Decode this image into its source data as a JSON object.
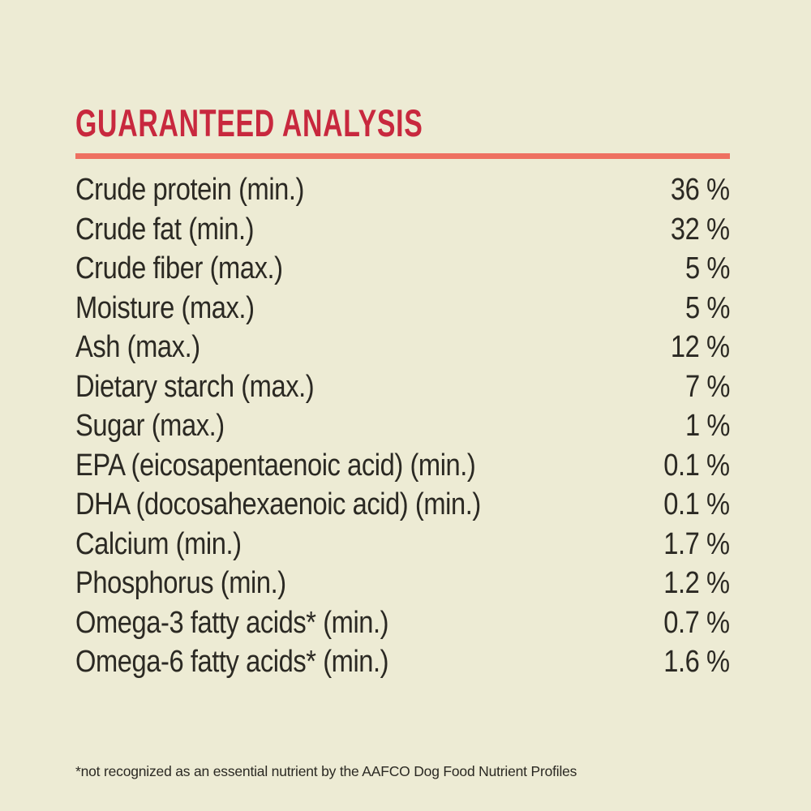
{
  "label": {
    "title": "GUARANTEED ANALYSIS",
    "rows": [
      {
        "name": "Crude protein (min.)",
        "value": "36 %"
      },
      {
        "name": "Crude fat (min.)",
        "value": "32 %"
      },
      {
        "name": "Crude fiber (max.)",
        "value": "5 %"
      },
      {
        "name": "Moisture (max.)",
        "value": "5 %"
      },
      {
        "name": "Ash (max.)",
        "value": "12 %"
      },
      {
        "name": "Dietary starch (max.)",
        "value": "7 %"
      },
      {
        "name": "Sugar (max.)",
        "value": "1 %"
      },
      {
        "name": "EPA (eicosapentaenoic acid) (min.)",
        "value": "0.1 %"
      },
      {
        "name": "DHA (docosahexaenoic acid) (min.)",
        "value": "0.1 %"
      },
      {
        "name": "Calcium (min.)",
        "value": "1.7 %"
      },
      {
        "name": "Phosphorus (min.)",
        "value": "1.2 %"
      },
      {
        "name": "Omega-3 fatty acids* (min.)",
        "value": "0.7 %"
      },
      {
        "name": "Omega-6 fatty acids* (min.)",
        "value": "1.6 %"
      }
    ],
    "footnote": "*not recognized as an essential nutrient by the AAFCO Dog Food Nutrient Profiles"
  },
  "colors": {
    "background": "#EDEBD4",
    "title": "#C8283E",
    "divider": "#EE7061",
    "text": "#2B2923"
  }
}
